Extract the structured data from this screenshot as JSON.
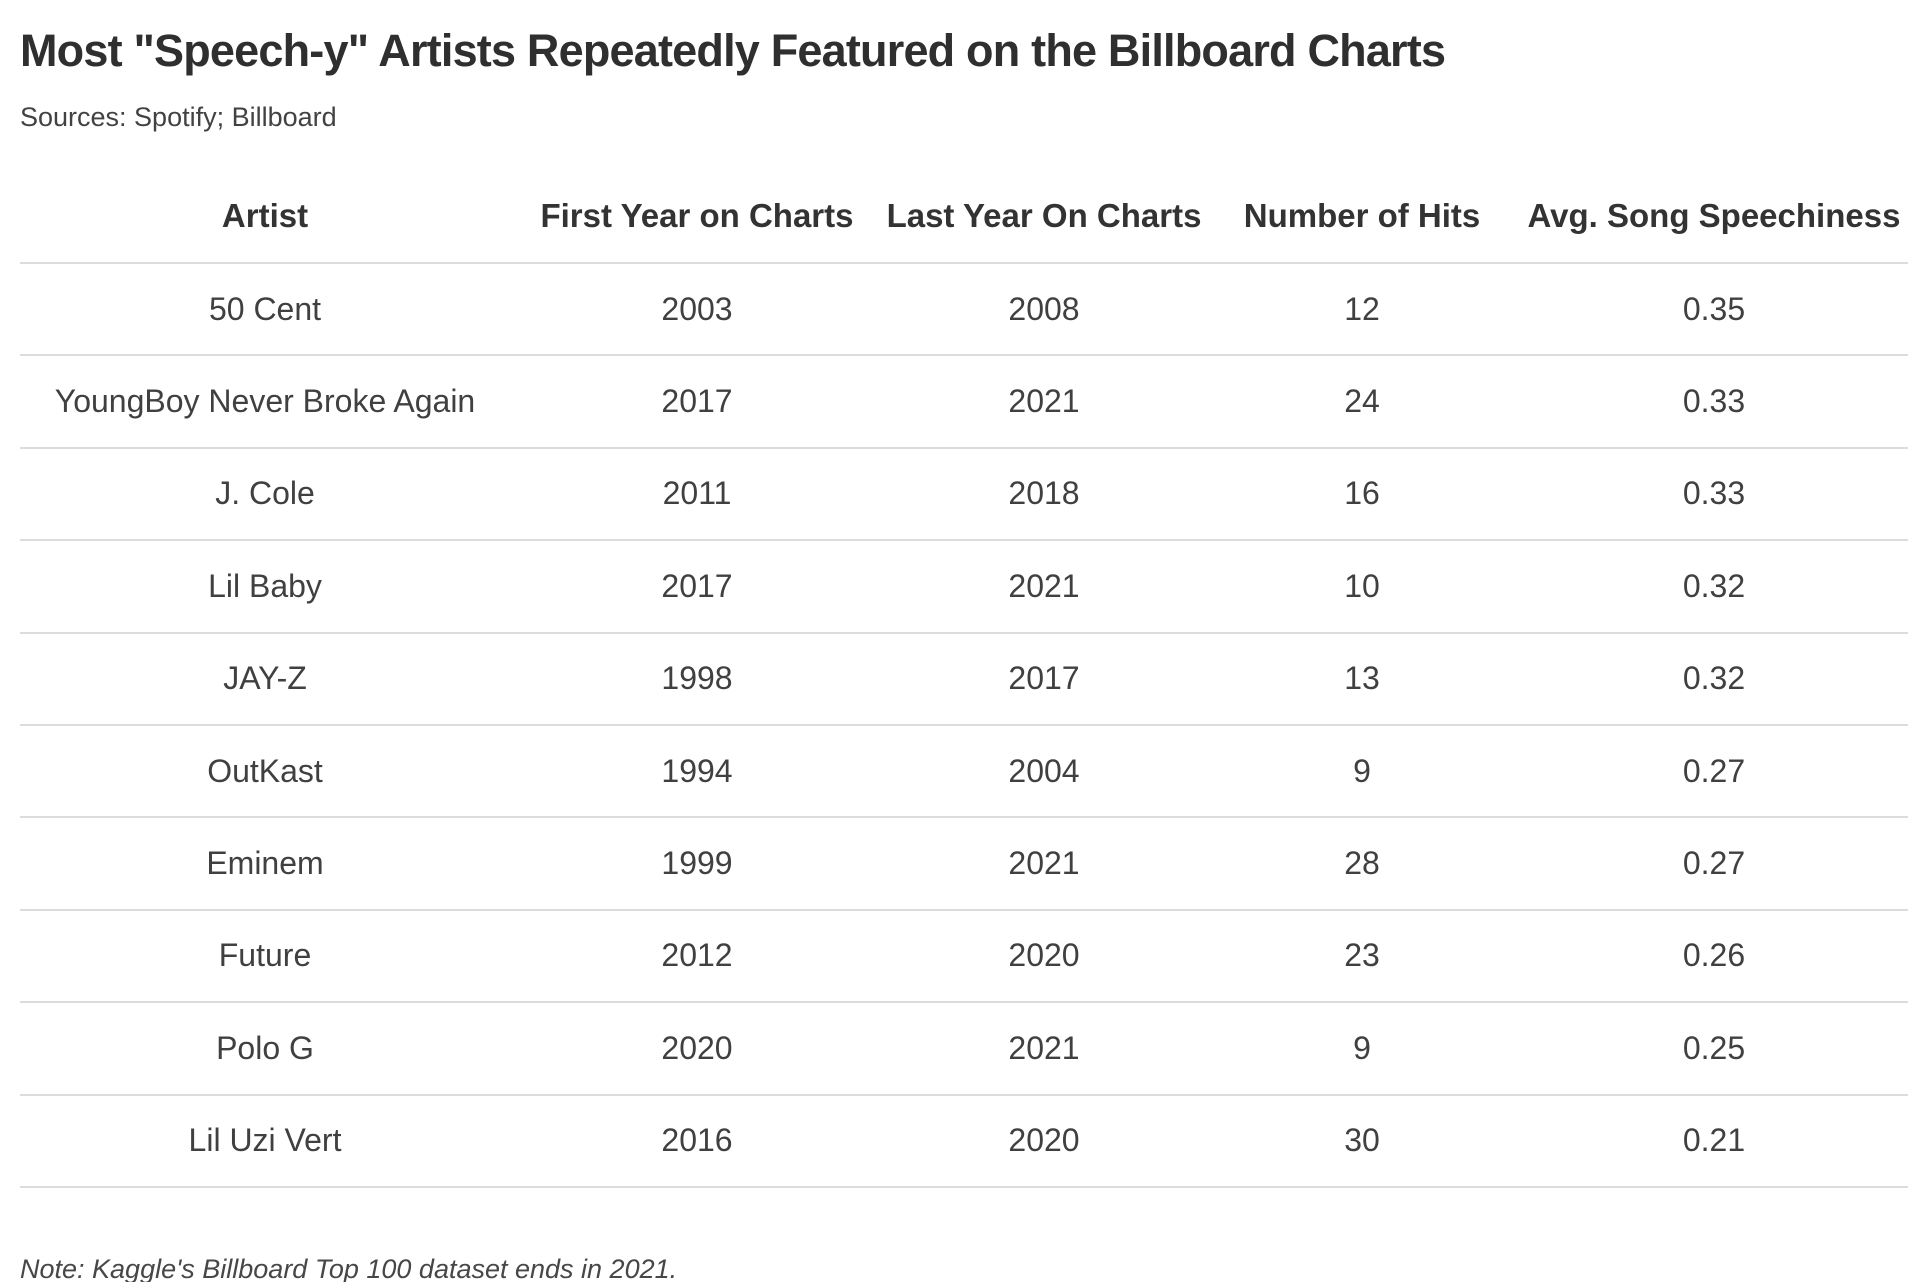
{
  "chart_data": {
    "type": "table",
    "title": "Most \"Speech-y\" Artists Repeatedly Featured on the Billboard Charts",
    "subtitle": "Sources: Spotify; Billboard",
    "columns": [
      "Artist",
      "First Year on Charts",
      "Last Year On Charts",
      "Number of Hits",
      "Avg. Song Speechiness"
    ],
    "rows": [
      [
        "50 Cent",
        "2003",
        "2008",
        "12",
        "0.35"
      ],
      [
        "YoungBoy Never Broke Again",
        "2017",
        "2021",
        "24",
        "0.33"
      ],
      [
        "J. Cole",
        "2011",
        "2018",
        "16",
        "0.33"
      ],
      [
        "Lil Baby",
        "2017",
        "2021",
        "10",
        "0.32"
      ],
      [
        "JAY-Z",
        "1998",
        "2017",
        "13",
        "0.32"
      ],
      [
        "OutKast",
        "1994",
        "2004",
        "9",
        "0.27"
      ],
      [
        "Eminem",
        "1999",
        "2021",
        "28",
        "0.27"
      ],
      [
        "Future",
        "2012",
        "2020",
        "23",
        "0.26"
      ],
      [
        "Polo G",
        "2020",
        "2021",
        "9",
        "0.25"
      ],
      [
        "Lil Uzi Vert",
        "2016",
        "2020",
        "30",
        "0.21"
      ]
    ],
    "note": "Note: Kaggle's Billboard Top 100 dataset ends in 2021.",
    "layout_hints": {
      "alignment": "center",
      "grid": "horizontal-rules-only",
      "rule_color": "#dcdcdc"
    }
  },
  "colors": {
    "background": "#ffffff",
    "heading_text": "#2f2f2f",
    "body_text": "#404040",
    "rule": "#dcdcdc"
  }
}
